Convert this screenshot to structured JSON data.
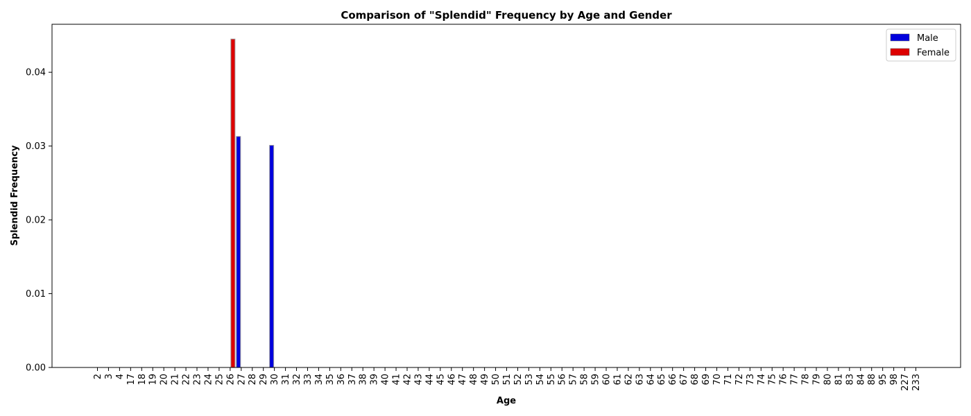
{
  "chart_data": {
    "type": "bar",
    "title": "Comparison of \"Splendid\" Frequency by Age and Gender",
    "xlabel": "Age",
    "ylabel": "Splendid Frequency",
    "ylim": [
      0,
      0.0465
    ],
    "yticks": [
      "0.00",
      "0.01",
      "0.02",
      "0.03",
      "0.04"
    ],
    "grid": false,
    "legend_position": "top-right",
    "categories": [
      "2",
      "3",
      "4",
      "17",
      "18",
      "19",
      "20",
      "21",
      "22",
      "23",
      "24",
      "25",
      "26",
      "27",
      "28",
      "29",
      "30",
      "31",
      "32",
      "33",
      "34",
      "35",
      "36",
      "37",
      "38",
      "39",
      "40",
      "41",
      "42",
      "43",
      "44",
      "45",
      "46",
      "47",
      "48",
      "49",
      "50",
      "51",
      "52",
      "53",
      "54",
      "55",
      "56",
      "57",
      "58",
      "59",
      "60",
      "61",
      "62",
      "63",
      "64",
      "65",
      "66",
      "67",
      "68",
      "69",
      "70",
      "71",
      "72",
      "73",
      "74",
      "75",
      "76",
      "77",
      "78",
      "79",
      "80",
      "81",
      "83",
      "84",
      "88",
      "95",
      "98",
      "227",
      "233"
    ],
    "series": [
      {
        "name": "Male",
        "color": "#0000dd",
        "values": [
          0,
          0,
          0,
          0,
          0,
          0,
          0,
          0,
          0,
          0,
          0,
          0,
          0,
          0.0313,
          0,
          0,
          0.0301,
          0,
          0,
          0,
          0,
          0,
          0,
          0,
          0,
          0,
          0,
          0,
          0,
          0,
          0,
          0,
          0,
          0,
          0,
          0,
          0,
          0,
          0,
          0,
          0,
          0,
          0,
          0,
          0,
          0,
          0,
          0,
          0,
          0,
          0,
          0,
          0,
          0,
          0,
          0,
          0,
          0,
          0,
          0,
          0,
          0,
          0,
          0,
          0,
          0,
          0,
          0,
          0,
          0,
          0,
          0,
          0,
          0,
          0
        ]
      },
      {
        "name": "Female",
        "color": "#dd0000",
        "values": [
          0,
          0,
          0,
          0,
          0,
          0,
          0,
          0,
          0,
          0,
          0,
          0,
          0.0445,
          0,
          0,
          0,
          0,
          0,
          0,
          0,
          0,
          0,
          0,
          0,
          0,
          0,
          0,
          0,
          0,
          0,
          0,
          0,
          0,
          0,
          0,
          0,
          0,
          0,
          0,
          0,
          0,
          0,
          0,
          0,
          0,
          0,
          0,
          0,
          0,
          0,
          0,
          0,
          0,
          0,
          0,
          0,
          0,
          0,
          0,
          0,
          0,
          0,
          0,
          0,
          0,
          0,
          0,
          0,
          0,
          0,
          0,
          0,
          0,
          0,
          0
        ]
      }
    ]
  }
}
